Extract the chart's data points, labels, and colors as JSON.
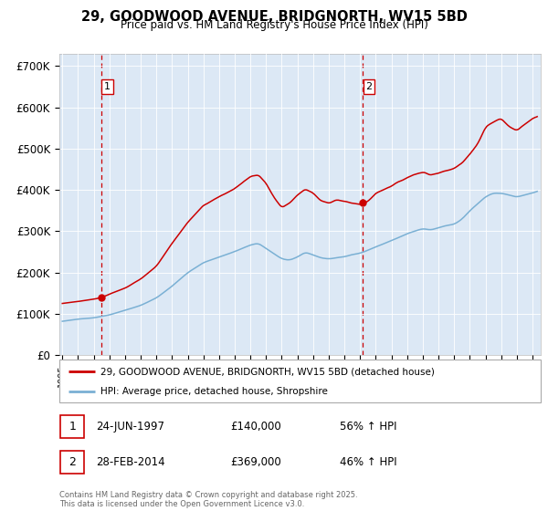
{
  "title_line1": "29, GOODWOOD AVENUE, BRIDGNORTH, WV15 5BD",
  "title_line2": "Price paid vs. HM Land Registry's House Price Index (HPI)",
  "yticks": [
    0,
    100000,
    200000,
    300000,
    400000,
    500000,
    600000,
    700000
  ],
  "ytick_labels": [
    "£0",
    "£100K",
    "£200K",
    "£300K",
    "£400K",
    "£500K",
    "£600K",
    "£700K"
  ],
  "xlim_start": 1994.8,
  "xlim_end": 2025.5,
  "ylim": [
    0,
    730000
  ],
  "sale1_date": 1997.48,
  "sale1_price": 140000,
  "sale1_label": "1",
  "sale2_date": 2014.16,
  "sale2_price": 369000,
  "sale2_label": "2",
  "red_color": "#cc0000",
  "blue_color": "#7ab0d4",
  "background_color": "#dce8f5",
  "legend_label_red": "29, GOODWOOD AVENUE, BRIDGNORTH, WV15 5BD (detached house)",
  "legend_label_blue": "HPI: Average price, detached house, Shropshire",
  "table_row1": [
    "1",
    "24-JUN-1997",
    "£140,000",
    "56% ↑ HPI"
  ],
  "table_row2": [
    "2",
    "28-FEB-2014",
    "£369,000",
    "46% ↑ HPI"
  ],
  "footnote": "Contains HM Land Registry data © Crown copyright and database right 2025.\nThis data is licensed under the Open Government Licence v3.0."
}
